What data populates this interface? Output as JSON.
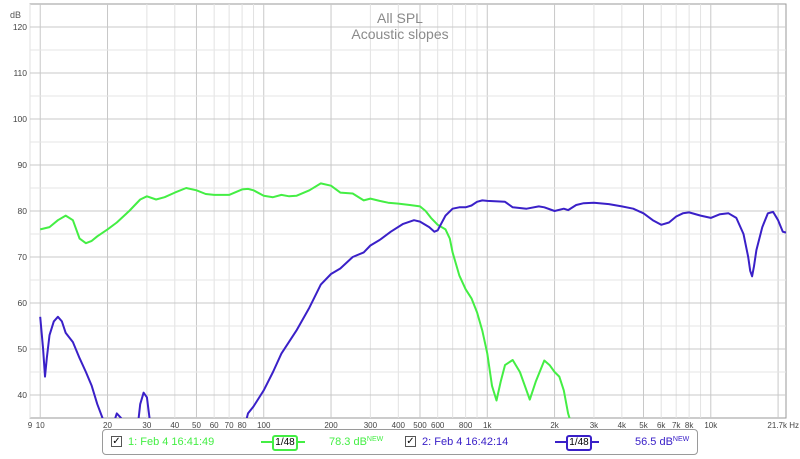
{
  "chart_data": {
    "type": "line",
    "title": "All SPL",
    "subtitle": "Acoustic slopes",
    "ylabel": "dB",
    "xunit": "Hz",
    "x_scale": "log",
    "xlim": [
      9,
      21700
    ],
    "ylim": [
      35,
      125
    ],
    "y_ticks": [
      40,
      50,
      60,
      70,
      80,
      90,
      100,
      110,
      120
    ],
    "x_ticks": [
      {
        "v": 9,
        "label": "9"
      },
      {
        "v": 10,
        "label": "10"
      },
      {
        "v": 20,
        "label": "20"
      },
      {
        "v": 30,
        "label": "30"
      },
      {
        "v": 40,
        "label": "40"
      },
      {
        "v": 50,
        "label": "50"
      },
      {
        "v": 60,
        "label": "60"
      },
      {
        "v": 70,
        "label": "70"
      },
      {
        "v": 80,
        "label": "80"
      },
      {
        "v": 100,
        "label": "100"
      },
      {
        "v": 200,
        "label": "200"
      },
      {
        "v": 300,
        "label": "300"
      },
      {
        "v": 400,
        "label": "400"
      },
      {
        "v": 500,
        "label": "500"
      },
      {
        "v": 600,
        "label": "600"
      },
      {
        "v": 800,
        "label": "800"
      },
      {
        "v": 1000,
        "label": "1k"
      },
      {
        "v": 2000,
        "label": "2k"
      },
      {
        "v": 3000,
        "label": "3k"
      },
      {
        "v": 4000,
        "label": "4k"
      },
      {
        "v": 5000,
        "label": "5k"
      },
      {
        "v": 6000,
        "label": "6k"
      },
      {
        "v": 7000,
        "label": "7k"
      },
      {
        "v": 8000,
        "label": "8k"
      },
      {
        "v": 10000,
        "label": "10k"
      },
      {
        "v": 21700,
        "label": "21.7k Hz"
      }
    ],
    "grid": true,
    "series": [
      {
        "name": "1: Feb 4 16:41:49",
        "color": "#44ee44",
        "points": [
          [
            10,
            76
          ],
          [
            11,
            76.5
          ],
          [
            12,
            78
          ],
          [
            13,
            79
          ],
          [
            14,
            78
          ],
          [
            15,
            74
          ],
          [
            16,
            73
          ],
          [
            17,
            73.5
          ],
          [
            18,
            74.5
          ],
          [
            20,
            76
          ],
          [
            22,
            77.5
          ],
          [
            25,
            80
          ],
          [
            28,
            82.5
          ],
          [
            30,
            83.2
          ],
          [
            33,
            82.5
          ],
          [
            36,
            83
          ],
          [
            40,
            84
          ],
          [
            45,
            85
          ],
          [
            50,
            84.5
          ],
          [
            55,
            83.7
          ],
          [
            60,
            83.5
          ],
          [
            70,
            83.5
          ],
          [
            80,
            84.7
          ],
          [
            85,
            84.8
          ],
          [
            90,
            84.5
          ],
          [
            100,
            83.3
          ],
          [
            110,
            83
          ],
          [
            120,
            83.5
          ],
          [
            130,
            83.2
          ],
          [
            140,
            83.3
          ],
          [
            160,
            84.5
          ],
          [
            180,
            86
          ],
          [
            200,
            85.5
          ],
          [
            220,
            84
          ],
          [
            250,
            83.8
          ],
          [
            280,
            82.3
          ],
          [
            300,
            82.7
          ],
          [
            330,
            82.2
          ],
          [
            360,
            81.8
          ],
          [
            400,
            81.6
          ],
          [
            450,
            81.3
          ],
          [
            500,
            81
          ],
          [
            530,
            80
          ],
          [
            560,
            78.5
          ],
          [
            600,
            77
          ],
          [
            650,
            76
          ],
          [
            680,
            74
          ],
          [
            700,
            71
          ],
          [
            750,
            66
          ],
          [
            800,
            63
          ],
          [
            850,
            61
          ],
          [
            900,
            58
          ],
          [
            950,
            54
          ],
          [
            1000,
            49
          ],
          [
            1050,
            42
          ],
          [
            1100,
            38.8
          ],
          [
            1150,
            43
          ],
          [
            1200,
            46.5
          ],
          [
            1300,
            47.6
          ],
          [
            1400,
            45
          ],
          [
            1550,
            39
          ],
          [
            1650,
            43
          ],
          [
            1800,
            47.5
          ],
          [
            1900,
            46.5
          ],
          [
            2000,
            45
          ],
          [
            2100,
            44
          ],
          [
            2200,
            41
          ],
          [
            2300,
            36
          ],
          [
            2400,
            33
          ]
        ]
      },
      {
        "name": "2: Feb 4 16:42:14",
        "color": "#3a20c8",
        "points": [
          [
            10,
            57
          ],
          [
            10.3,
            50
          ],
          [
            10.5,
            44
          ],
          [
            10.7,
            48
          ],
          [
            11,
            53
          ],
          [
            11.5,
            56
          ],
          [
            12,
            57
          ],
          [
            12.5,
            56
          ],
          [
            13,
            53.5
          ],
          [
            14,
            51.5
          ],
          [
            15,
            48
          ],
          [
            16,
            45
          ],
          [
            17,
            42
          ],
          [
            18,
            38
          ],
          [
            19,
            35
          ],
          [
            20,
            31
          ],
          [
            21,
            33
          ],
          [
            22,
            36
          ],
          [
            23,
            35
          ],
          [
            24,
            31
          ],
          [
            27,
            31
          ],
          [
            28,
            38
          ],
          [
            29,
            40.5
          ],
          [
            30,
            39.5
          ],
          [
            31,
            34
          ],
          [
            32,
            30
          ],
          [
            80,
            31
          ],
          [
            85,
            36
          ],
          [
            90,
            37.5
          ],
          [
            100,
            41
          ],
          [
            110,
            45
          ],
          [
            120,
            49
          ],
          [
            140,
            54
          ],
          [
            160,
            59
          ],
          [
            180,
            64
          ],
          [
            200,
            66.3
          ],
          [
            220,
            67.5
          ],
          [
            250,
            70
          ],
          [
            280,
            71
          ],
          [
            300,
            72.5
          ],
          [
            330,
            73.7
          ],
          [
            370,
            75.5
          ],
          [
            420,
            77.2
          ],
          [
            470,
            78
          ],
          [
            500,
            77.7
          ],
          [
            550,
            76.5
          ],
          [
            580,
            75.5
          ],
          [
            600,
            75.8
          ],
          [
            650,
            79
          ],
          [
            700,
            80.5
          ],
          [
            750,
            80.8
          ],
          [
            800,
            80.8
          ],
          [
            850,
            81.2
          ],
          [
            900,
            82
          ],
          [
            950,
            82.3
          ],
          [
            1000,
            82.2
          ],
          [
            1200,
            82
          ],
          [
            1300,
            80.8
          ],
          [
            1500,
            80.5
          ],
          [
            1700,
            81
          ],
          [
            1800,
            80.8
          ],
          [
            2000,
            80
          ],
          [
            2200,
            80.5
          ],
          [
            2300,
            80.2
          ],
          [
            2500,
            81.3
          ],
          [
            2700,
            81.7
          ],
          [
            3000,
            81.8
          ],
          [
            3500,
            81.5
          ],
          [
            4000,
            81
          ],
          [
            4500,
            80.5
          ],
          [
            5000,
            79.5
          ],
          [
            5500,
            78
          ],
          [
            6000,
            77
          ],
          [
            6500,
            77.5
          ],
          [
            7000,
            78.8
          ],
          [
            7500,
            79.5
          ],
          [
            8000,
            79.7
          ],
          [
            9000,
            79
          ],
          [
            10000,
            78.5
          ],
          [
            11000,
            79.3
          ],
          [
            12000,
            79.5
          ],
          [
            13000,
            78.5
          ],
          [
            14000,
            75
          ],
          [
            14700,
            70
          ],
          [
            15000,
            67
          ],
          [
            15300,
            65.8
          ],
          [
            15600,
            68
          ],
          [
            16000,
            71.5
          ],
          [
            17000,
            76.5
          ],
          [
            18000,
            79.5
          ],
          [
            19000,
            79.8
          ],
          [
            20000,
            78
          ],
          [
            21000,
            75.5
          ],
          [
            21700,
            75.3
          ]
        ]
      }
    ]
  },
  "legend": {
    "items": [
      {
        "label": "1: Feb 4 16:41:49",
        "smoothing": "1/48",
        "level": "78.3 dB",
        "badge": "NEW",
        "color": "#44ee44",
        "checked": "✓"
      },
      {
        "label": "2: Feb 4 16:42:14",
        "smoothing": "1/48",
        "level": "56.5 dB",
        "badge": "NEW",
        "color": "#3a20c8",
        "checked": "✓"
      }
    ]
  }
}
